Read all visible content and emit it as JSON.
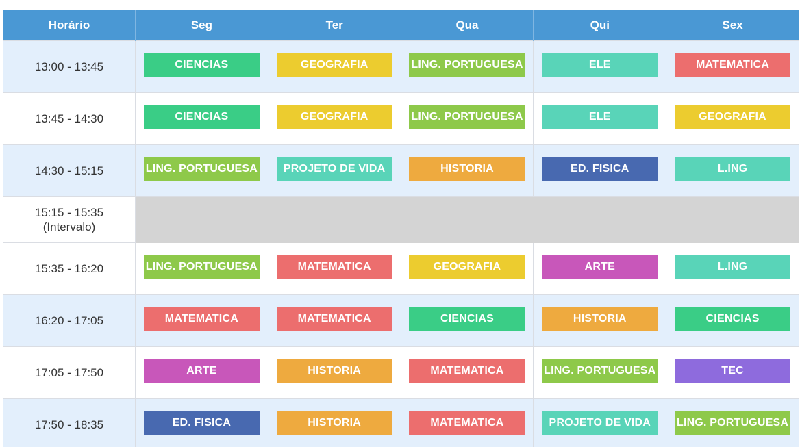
{
  "header": {
    "time": "Horário",
    "days": [
      "Seg",
      "Ter",
      "Qua",
      "Qui",
      "Sex"
    ]
  },
  "colors": {
    "header_bg": "#4a98d4",
    "row_alt_bg": "#e3effc",
    "break_bg": "#d4d4d4",
    "ciencias": "#3acd86",
    "geografia": "#eccc2f",
    "ling_portuguesa": "#8ec94a",
    "ele": "#59d4b8",
    "matematica": "#ec6e6e",
    "projeto_de_vida": "#59d4b8",
    "historia": "#eeaa3f",
    "ed_fisica": "#4869b0",
    "l_ing": "#59d4b8",
    "arte": "#c857ba",
    "tec": "#8e6bdd"
  },
  "rows": [
    {
      "time": "13:00 - 13:45",
      "cells": [
        {
          "label": "CIENCIAS",
          "color": "#3acd86"
        },
        {
          "label": "GEOGRAFIA",
          "color": "#eccc2f"
        },
        {
          "label": "LING. PORTUGUESA",
          "color": "#8ec94a"
        },
        {
          "label": "ELE",
          "color": "#59d4b8"
        },
        {
          "label": "MATEMATICA",
          "color": "#ec6e6e"
        }
      ]
    },
    {
      "time": "13:45 - 14:30",
      "cells": [
        {
          "label": "CIENCIAS",
          "color": "#3acd86"
        },
        {
          "label": "GEOGRAFIA",
          "color": "#eccc2f"
        },
        {
          "label": "LING. PORTUGUESA",
          "color": "#8ec94a"
        },
        {
          "label": "ELE",
          "color": "#59d4b8"
        },
        {
          "label": "GEOGRAFIA",
          "color": "#eccc2f"
        }
      ]
    },
    {
      "time": "14:30 - 15:15",
      "cells": [
        {
          "label": "LING. PORTUGUESA",
          "color": "#8ec94a"
        },
        {
          "label": "PROJETO DE VIDA",
          "color": "#59d4b8"
        },
        {
          "label": "HISTORIA",
          "color": "#eeaa3f"
        },
        {
          "label": "ED. FISICA",
          "color": "#4869b0"
        },
        {
          "label": "L.ING",
          "color": "#59d4b8"
        }
      ]
    },
    {
      "time": "15:15 - 15:35",
      "note": "(Intervalo)",
      "is_break": true
    },
    {
      "time": "15:35 - 16:20",
      "cells": [
        {
          "label": "LING. PORTUGUESA",
          "color": "#8ec94a"
        },
        {
          "label": "MATEMATICA",
          "color": "#ec6e6e"
        },
        {
          "label": "GEOGRAFIA",
          "color": "#eccc2f"
        },
        {
          "label": "ARTE",
          "color": "#c857ba"
        },
        {
          "label": "L.ING",
          "color": "#59d4b8"
        }
      ]
    },
    {
      "time": "16:20 - 17:05",
      "cells": [
        {
          "label": "MATEMATICA",
          "color": "#ec6e6e"
        },
        {
          "label": "MATEMATICA",
          "color": "#ec6e6e"
        },
        {
          "label": "CIENCIAS",
          "color": "#3acd86"
        },
        {
          "label": "HISTORIA",
          "color": "#eeaa3f"
        },
        {
          "label": "CIENCIAS",
          "color": "#3acd86"
        }
      ]
    },
    {
      "time": "17:05 - 17:50",
      "cells": [
        {
          "label": "ARTE",
          "color": "#c857ba"
        },
        {
          "label": "HISTORIA",
          "color": "#eeaa3f"
        },
        {
          "label": "MATEMATICA",
          "color": "#ec6e6e"
        },
        {
          "label": "LING. PORTUGUESA",
          "color": "#8ec94a"
        },
        {
          "label": "TEC",
          "color": "#8e6bdd"
        }
      ]
    },
    {
      "time": "17:50 - 18:35",
      "cells": [
        {
          "label": "ED. FISICA",
          "color": "#4869b0"
        },
        {
          "label": "HISTORIA",
          "color": "#eeaa3f"
        },
        {
          "label": "MATEMATICA",
          "color": "#ec6e6e"
        },
        {
          "label": "PROJETO DE VIDA",
          "color": "#59d4b8"
        },
        {
          "label": "LING. PORTUGUESA",
          "color": "#8ec94a"
        }
      ]
    }
  ]
}
